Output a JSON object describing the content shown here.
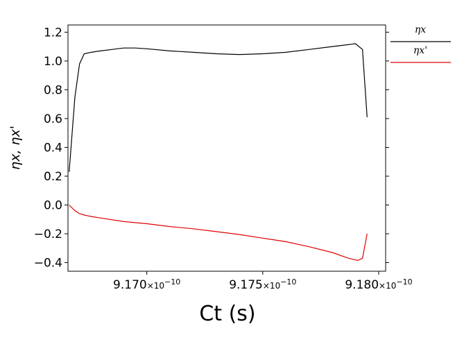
{
  "chart_data": {
    "type": "line",
    "xlabel": "Ct (s)",
    "ylabel": "ηx, ηx'",
    "xlim": [
      9.1666e-10,
      9.1803e-10
    ],
    "ylim": [
      -0.46,
      1.25
    ],
    "x_ticks": [
      {
        "value": 9.17e-10,
        "mantissa": "9.170",
        "exponent_text": "×10",
        "power": "−10"
      },
      {
        "value": 9.175e-10,
        "mantissa": "9.175",
        "exponent_text": "×10",
        "power": "−10"
      },
      {
        "value": 9.18e-10,
        "mantissa": "9.180",
        "exponent_text": "×10",
        "power": "−10"
      }
    ],
    "y_ticks": [
      {
        "value": 1.2,
        "label": "1.2"
      },
      {
        "value": 1.0,
        "label": "1.0"
      },
      {
        "value": 0.8,
        "label": "0.8"
      },
      {
        "value": 0.6,
        "label": "0.6"
      },
      {
        "value": 0.4,
        "label": "0.4"
      },
      {
        "value": 0.2,
        "label": "0.2"
      },
      {
        "value": 0.0,
        "label": "0.0"
      },
      {
        "value": -0.2,
        "label": "−0.2"
      },
      {
        "value": -0.4,
        "label": "−0.4"
      }
    ],
    "legend_placement": "right",
    "grid": false,
    "series": [
      {
        "name": "ηx",
        "color": "#000000",
        "x": [
          9.16665e-10,
          9.1669e-10,
          9.1671e-10,
          9.1673e-10,
          9.1676e-10,
          9.168e-10,
          9.1685e-10,
          9.169e-10,
          9.1695e-10,
          9.17e-10,
          9.171e-10,
          9.172e-10,
          9.173e-10,
          9.174e-10,
          9.175e-10,
          9.176e-10,
          9.177e-10,
          9.178e-10,
          9.1785e-10,
          9.179e-10,
          9.1793e-10,
          9.1795e-10
        ],
        "y": [
          0.23,
          0.75,
          0.98,
          1.05,
          1.06,
          1.07,
          1.08,
          1.09,
          1.09,
          1.085,
          1.07,
          1.06,
          1.05,
          1.045,
          1.05,
          1.06,
          1.08,
          1.1,
          1.11,
          1.12,
          1.08,
          0.61
        ]
      },
      {
        "name": "ηx'",
        "color": "#e00000",
        "x": [
          9.16665e-10,
          9.1669e-10,
          9.1671e-10,
          9.1673e-10,
          9.1676e-10,
          9.168e-10,
          9.169e-10,
          9.17e-10,
          9.171e-10,
          9.172e-10,
          9.173e-10,
          9.174e-10,
          9.175e-10,
          9.176e-10,
          9.177e-10,
          9.178e-10,
          9.1787e-10,
          9.1791e-10,
          9.1793e-10,
          9.1795e-10
        ],
        "y": [
          0.0,
          -0.04,
          -0.06,
          -0.07,
          -0.08,
          -0.09,
          -0.115,
          -0.13,
          -0.15,
          -0.165,
          -0.185,
          -0.205,
          -0.23,
          -0.255,
          -0.29,
          -0.33,
          -0.37,
          -0.385,
          -0.37,
          -0.2
        ]
      }
    ]
  }
}
